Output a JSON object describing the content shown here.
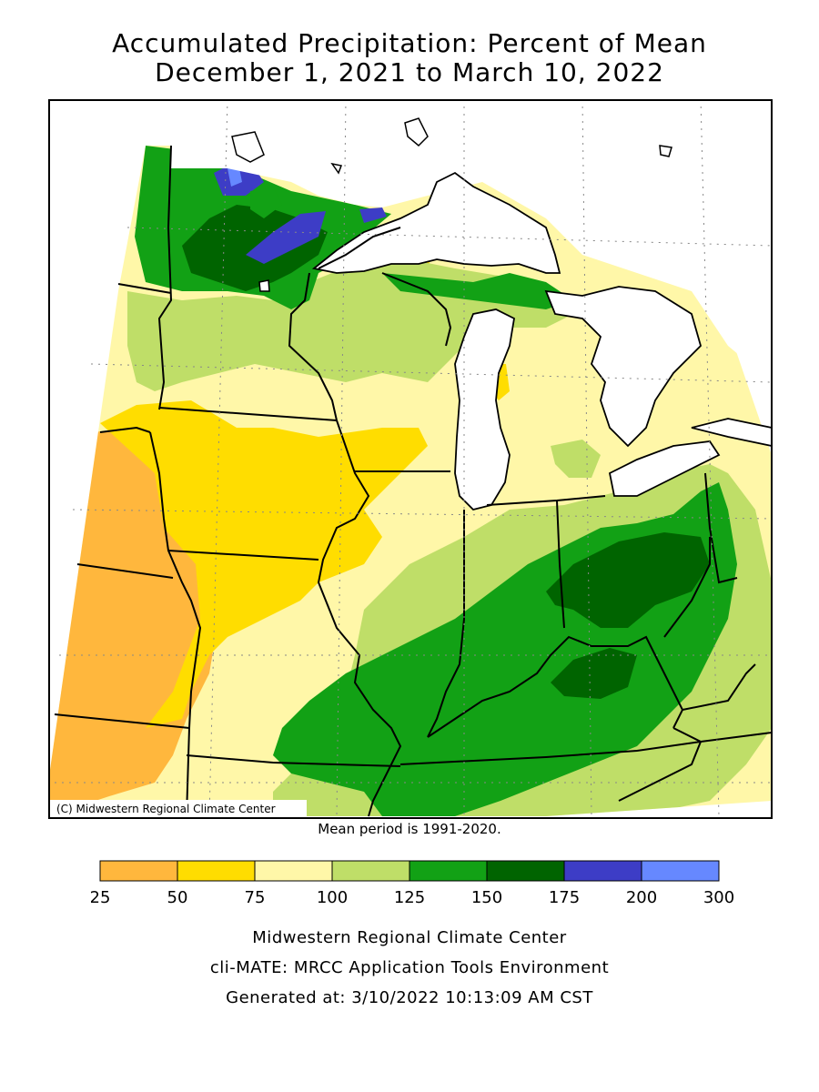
{
  "title_line1": "Accumulated Precipitation: Percent of Mean",
  "title_line2": "December 1, 2021 to March 10, 2022",
  "copyright": "(C) Midwestern Regional Climate Center",
  "mean_period": "Mean period is 1991-2020.",
  "legend": {
    "bins": [
      {
        "from": "25",
        "to": "50",
        "color": "#ffb73d"
      },
      {
        "from": "50",
        "to": "75",
        "color": "#ffdd00"
      },
      {
        "from": "75",
        "to": "100",
        "color": "#fff7a8"
      },
      {
        "from": "100",
        "to": "125",
        "color": "#bfde68"
      },
      {
        "from": "125",
        "to": "150",
        "color": "#12a115"
      },
      {
        "from": "150",
        "to": "175",
        "color": "#006400"
      },
      {
        "from": "175",
        "to": "200",
        "color": "#3d3dc6"
      },
      {
        "from": "200",
        "to": "300",
        "color": "#6688ff"
      }
    ],
    "tick_labels": [
      "25",
      "50",
      "75",
      "100",
      "125",
      "150",
      "175",
      "200",
      "300"
    ]
  },
  "footer": {
    "line1": "Midwestern Regional Climate Center",
    "line2": "cli-MATE: MRCC Application Tools Environment",
    "line3": "Generated at: 3/10/2022 10:13:09 AM CST"
  },
  "colors": {
    "water": "#ffffff",
    "border": "#000000"
  }
}
